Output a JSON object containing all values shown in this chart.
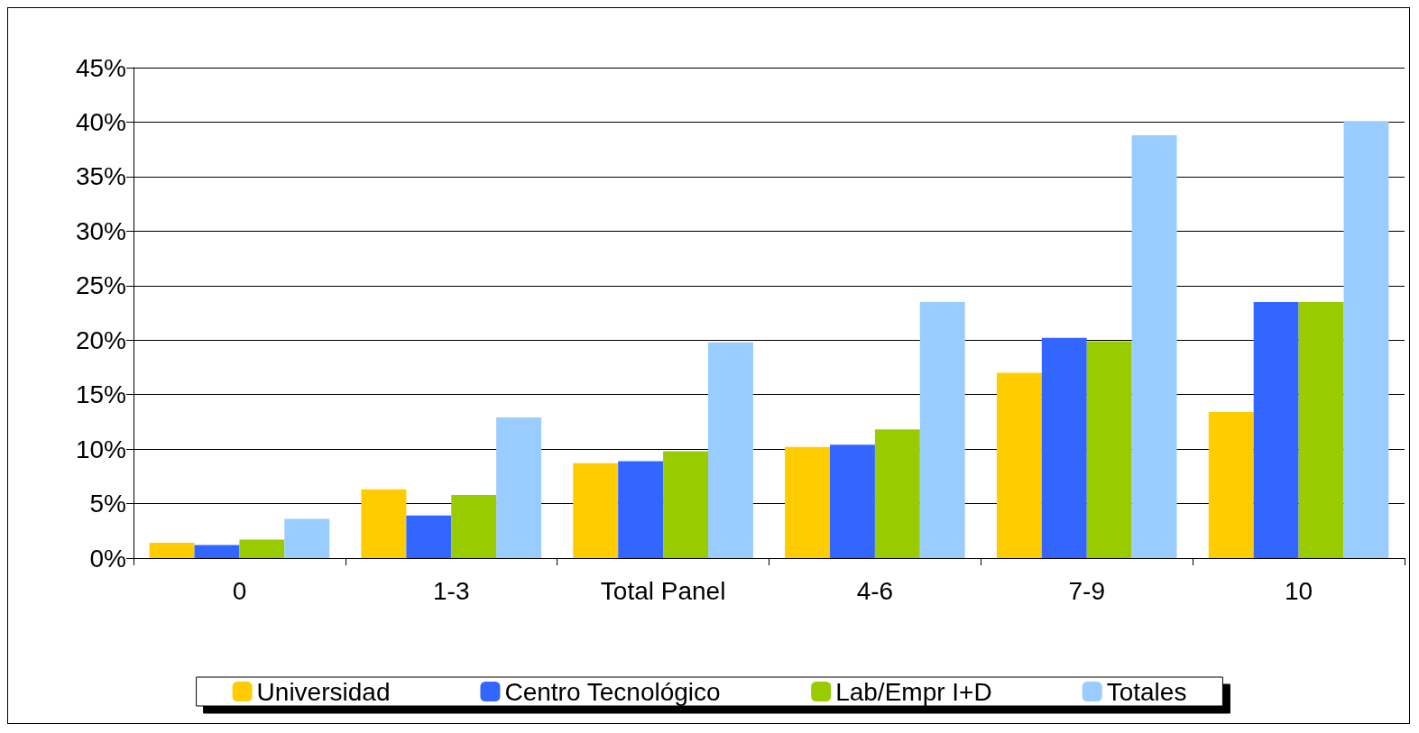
{
  "chart_data": {
    "type": "bar",
    "categories": [
      "0",
      "1-3",
      "Total Panel",
      "4-6",
      "7-9",
      "10"
    ],
    "series": [
      {
        "name": "Universidad",
        "color": "#ffcc00",
        "values": [
          1.4,
          6.3,
          8.7,
          10.2,
          17.0,
          13.4
        ]
      },
      {
        "name": "Centro Tecnológico",
        "color": "#3366ff",
        "values": [
          1.2,
          3.9,
          8.9,
          10.4,
          20.2,
          23.5
        ]
      },
      {
        "name": "Lab/Empr I+D",
        "color": "#99cc00",
        "values": [
          1.7,
          5.8,
          9.8,
          11.8,
          19.9,
          23.5
        ]
      },
      {
        "name": "Totales",
        "color": "#99ccff",
        "values": [
          3.6,
          12.9,
          19.8,
          23.5,
          38.8,
          40.1
        ]
      }
    ],
    "ylim": [
      0,
      45
    ],
    "yticks": [
      {
        "value": 0,
        "label": "0%"
      },
      {
        "value": 5,
        "label": "5%"
      },
      {
        "value": 10,
        "label": "10%"
      },
      {
        "value": 15,
        "label": "15%"
      },
      {
        "value": 20,
        "label": "20%"
      },
      {
        "value": 25,
        "label": "25%"
      },
      {
        "value": 30,
        "label": "30%"
      },
      {
        "value": 35,
        "label": "35%"
      },
      {
        "value": 40,
        "label": "40%"
      },
      {
        "value": 45,
        "label": "45%"
      }
    ],
    "grid": "y",
    "legend": "bottom"
  }
}
